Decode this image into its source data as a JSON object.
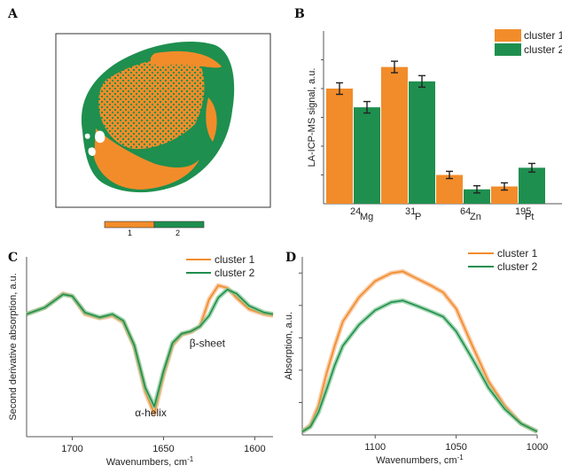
{
  "colors": {
    "orange": "#f28c2a",
    "green": "#1e8f4e",
    "orange_light": "#f7b27a",
    "green_light": "#7cc48f"
  },
  "panels": {
    "A": "A",
    "B": "B",
    "C": "C",
    "D": "D"
  },
  "map_legend": {
    "labels": [
      "1",
      "2"
    ]
  },
  "chart_data": [
    {
      "id": "B",
      "type": "bar",
      "title": "",
      "ylabel": "LA-ICP-MS signal, a.u.",
      "xlabel": "",
      "y_scale": "log",
      "y_ticks_labeled": false,
      "categories": [
        {
          "mass": "24",
          "element": "Mg"
        },
        {
          "mass": "31",
          "element": "P"
        },
        {
          "mass": "64",
          "element": "Zn"
        },
        {
          "mass": "195",
          "element": "Pt"
        }
      ],
      "series": [
        {
          "name": "cluster 1",
          "values": [
            0.8,
            0.95,
            0.2,
            0.12
          ],
          "errors": [
            0.04,
            0.04,
            0.025,
            0.025
          ]
        },
        {
          "name": "cluster 2",
          "values": [
            0.67,
            0.85,
            0.1,
            0.25
          ],
          "errors": [
            0.04,
            0.04,
            0.025,
            0.03
          ]
        }
      ],
      "ylim": [
        0,
        1.2
      ],
      "legend": "top-right"
    },
    {
      "id": "C",
      "type": "line",
      "title": "",
      "xlabel": "Wavenumbers, cm",
      "xlabel_sup": "-1",
      "ylabel": "Second derivative absorption, a.u.",
      "xlim": [
        1725,
        1590
      ],
      "x_ticks": [
        1700,
        1650,
        1600
      ],
      "annotations": [
        {
          "text": "β-sheet",
          "x": 1626,
          "y": -0.2
        },
        {
          "text": "α-helix",
          "x": 1657,
          "y": -1.05
        }
      ],
      "series": [
        {
          "name": "cluster 1",
          "points": [
            [
              1725,
              0.2
            ],
            [
              1715,
              0.28
            ],
            [
              1705,
              0.45
            ],
            [
              1700,
              0.42
            ],
            [
              1693,
              0.2
            ],
            [
              1685,
              0.15
            ],
            [
              1678,
              0.18
            ],
            [
              1672,
              0.1
            ],
            [
              1666,
              -0.2
            ],
            [
              1660,
              -0.75
            ],
            [
              1655,
              -1.02
            ],
            [
              1650,
              -0.55
            ],
            [
              1645,
              -0.18
            ],
            [
              1640,
              -0.05
            ],
            [
              1635,
              -0.02
            ],
            [
              1630,
              0.05
            ],
            [
              1625,
              0.38
            ],
            [
              1620,
              0.55
            ],
            [
              1615,
              0.52
            ],
            [
              1610,
              0.4
            ],
            [
              1603,
              0.26
            ],
            [
              1595,
              0.2
            ],
            [
              1590,
              0.18
            ]
          ]
        },
        {
          "name": "cluster 2",
          "points": [
            [
              1725,
              0.2
            ],
            [
              1715,
              0.28
            ],
            [
              1705,
              0.44
            ],
            [
              1700,
              0.42
            ],
            [
              1693,
              0.22
            ],
            [
              1685,
              0.16
            ],
            [
              1678,
              0.2
            ],
            [
              1672,
              0.12
            ],
            [
              1666,
              -0.18
            ],
            [
              1660,
              -0.7
            ],
            [
              1655,
              -0.93
            ],
            [
              1650,
              -0.5
            ],
            [
              1645,
              -0.15
            ],
            [
              1640,
              -0.04
            ],
            [
              1635,
              -0.01
            ],
            [
              1630,
              0.05
            ],
            [
              1625,
              0.18
            ],
            [
              1620,
              0.4
            ],
            [
              1615,
              0.5
            ],
            [
              1610,
              0.45
            ],
            [
              1603,
              0.3
            ],
            [
              1595,
              0.22
            ],
            [
              1590,
              0.2
            ]
          ]
        }
      ]
    },
    {
      "id": "D",
      "type": "line",
      "title": "",
      "xlabel": "Wavenumbers, cm",
      "xlabel_sup": "-1",
      "ylabel": "Absorption, a.u.",
      "xlim": [
        1145,
        1000
      ],
      "x_ticks": [
        1100,
        1050,
        1000
      ],
      "series": [
        {
          "name": "cluster 1",
          "points": [
            [
              1145,
              0.02
            ],
            [
              1140,
              0.06
            ],
            [
              1135,
              0.18
            ],
            [
              1130,
              0.38
            ],
            [
              1125,
              0.55
            ],
            [
              1120,
              0.7
            ],
            [
              1110,
              0.85
            ],
            [
              1100,
              0.95
            ],
            [
              1090,
              1.0
            ],
            [
              1083,
              1.01
            ],
            [
              1075,
              0.97
            ],
            [
              1065,
              0.92
            ],
            [
              1058,
              0.88
            ],
            [
              1050,
              0.78
            ],
            [
              1040,
              0.55
            ],
            [
              1030,
              0.33
            ],
            [
              1020,
              0.18
            ],
            [
              1010,
              0.07
            ],
            [
              1000,
              0.02
            ]
          ]
        },
        {
          "name": "cluster 2",
          "points": [
            [
              1145,
              0.02
            ],
            [
              1140,
              0.05
            ],
            [
              1135,
              0.14
            ],
            [
              1130,
              0.28
            ],
            [
              1125,
              0.43
            ],
            [
              1120,
              0.55
            ],
            [
              1110,
              0.68
            ],
            [
              1100,
              0.77
            ],
            [
              1090,
              0.82
            ],
            [
              1083,
              0.83
            ],
            [
              1075,
              0.8
            ],
            [
              1065,
              0.76
            ],
            [
              1058,
              0.73
            ],
            [
              1050,
              0.64
            ],
            [
              1040,
              0.47
            ],
            [
              1030,
              0.29
            ],
            [
              1020,
              0.16
            ],
            [
              1010,
              0.07
            ],
            [
              1000,
              0.02
            ]
          ]
        }
      ],
      "legend": "top-right"
    }
  ]
}
